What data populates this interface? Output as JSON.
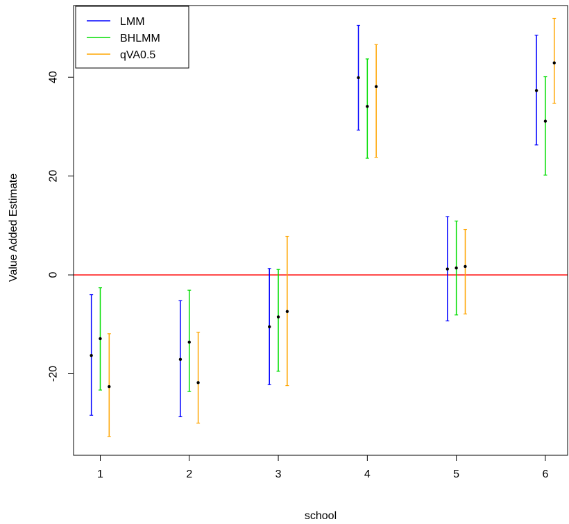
{
  "chart_data": {
    "type": "errorbar",
    "xlabel": "school",
    "ylabel": "Value Added Estimate",
    "categories": [
      "1",
      "2",
      "3",
      "4",
      "5",
      "6"
    ],
    "xlim": [
      0.7,
      6.25
    ],
    "ylim": [
      -36.5,
      54.5
    ],
    "yticks": [
      -20,
      0,
      20,
      40
    ],
    "reference_line": {
      "y": 0,
      "color": "#ff0000"
    },
    "group_offset": 0.1,
    "legend": {
      "position": "top-left",
      "entries": [
        "LMM",
        "BHLMM",
        "qVA0.5"
      ]
    },
    "series": [
      {
        "name": "LMM",
        "color": "#0000ff",
        "values": [
          -16.3,
          -17.1,
          -10.5,
          39.9,
          1.2,
          37.3
        ],
        "lower": [
          -28.4,
          -28.7,
          -22.2,
          29.3,
          -9.3,
          26.3
        ],
        "upper": [
          -4.0,
          -5.2,
          1.3,
          50.5,
          11.8,
          48.5
        ]
      },
      {
        "name": "BHLMM",
        "color": "#00dd00",
        "values": [
          -12.9,
          -13.6,
          -8.5,
          34.1,
          1.4,
          31.1
        ],
        "lower": [
          -23.3,
          -23.6,
          -19.5,
          23.6,
          -8.1,
          20.2
        ],
        "upper": [
          -2.6,
          -3.1,
          1.1,
          43.7,
          10.9,
          40.1
        ]
      },
      {
        "name": "qVA0.5",
        "color": "#ffa500",
        "values": [
          -22.6,
          -21.8,
          -7.4,
          38.1,
          1.7,
          42.9
        ],
        "lower": [
          -32.7,
          -30.0,
          -22.4,
          23.8,
          -7.9,
          34.7
        ],
        "upper": [
          -11.9,
          -11.6,
          7.8,
          46.6,
          9.2,
          51.9
        ]
      }
    ]
  }
}
